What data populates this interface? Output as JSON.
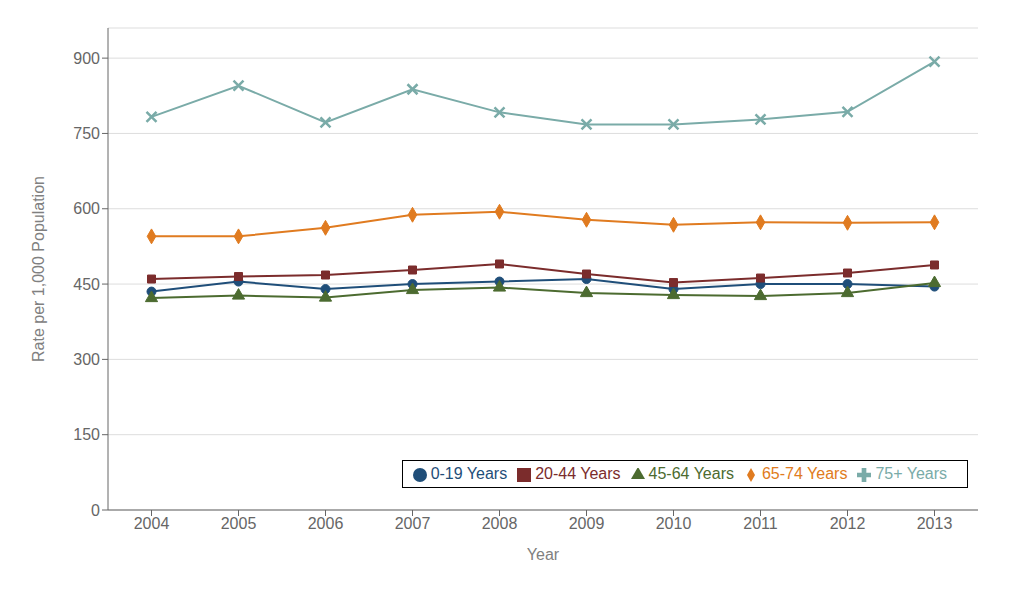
{
  "chart_data": {
    "type": "line",
    "xlabel": "Year",
    "ylabel": "Rate per 1,000 Population",
    "x": [
      2004,
      2005,
      2006,
      2007,
      2008,
      2009,
      2010,
      2011,
      2012,
      2013
    ],
    "xlim": [
      2003.5,
      2013.5
    ],
    "xticks": [
      2004,
      2005,
      2006,
      2007,
      2008,
      2009,
      2010,
      2011,
      2012,
      2013
    ],
    "ylim": [
      0,
      960
    ],
    "yticks": [
      0,
      150,
      300,
      450,
      600,
      750,
      900
    ],
    "grid": true,
    "legend": "lower right",
    "series": [
      {
        "name": "0-19 Years",
        "color": "#1f4e79",
        "marker": "circle",
        "values": [
          435,
          455,
          440,
          450,
          455,
          460,
          440,
          450,
          450,
          445
        ]
      },
      {
        "name": "20-44 Years",
        "color": "#7b2c2c",
        "marker": "square",
        "values": [
          460,
          465,
          468,
          478,
          490,
          470,
          453,
          462,
          472,
          488
        ]
      },
      {
        "name": "45-64 Years",
        "color": "#4c6b30",
        "marker": "triangle",
        "values": [
          422,
          427,
          423,
          438,
          443,
          432,
          428,
          426,
          432,
          452
        ]
      },
      {
        "name": "65-74 Years",
        "color": "#e07b20",
        "marker": "diamond",
        "values": [
          545,
          545,
          562,
          588,
          594,
          578,
          568,
          573,
          572,
          573
        ]
      },
      {
        "name": "75+ Years",
        "color": "#7aaba8",
        "marker": "x",
        "values": [
          783,
          845,
          772,
          838,
          792,
          768,
          768,
          778,
          793,
          893
        ]
      }
    ]
  }
}
